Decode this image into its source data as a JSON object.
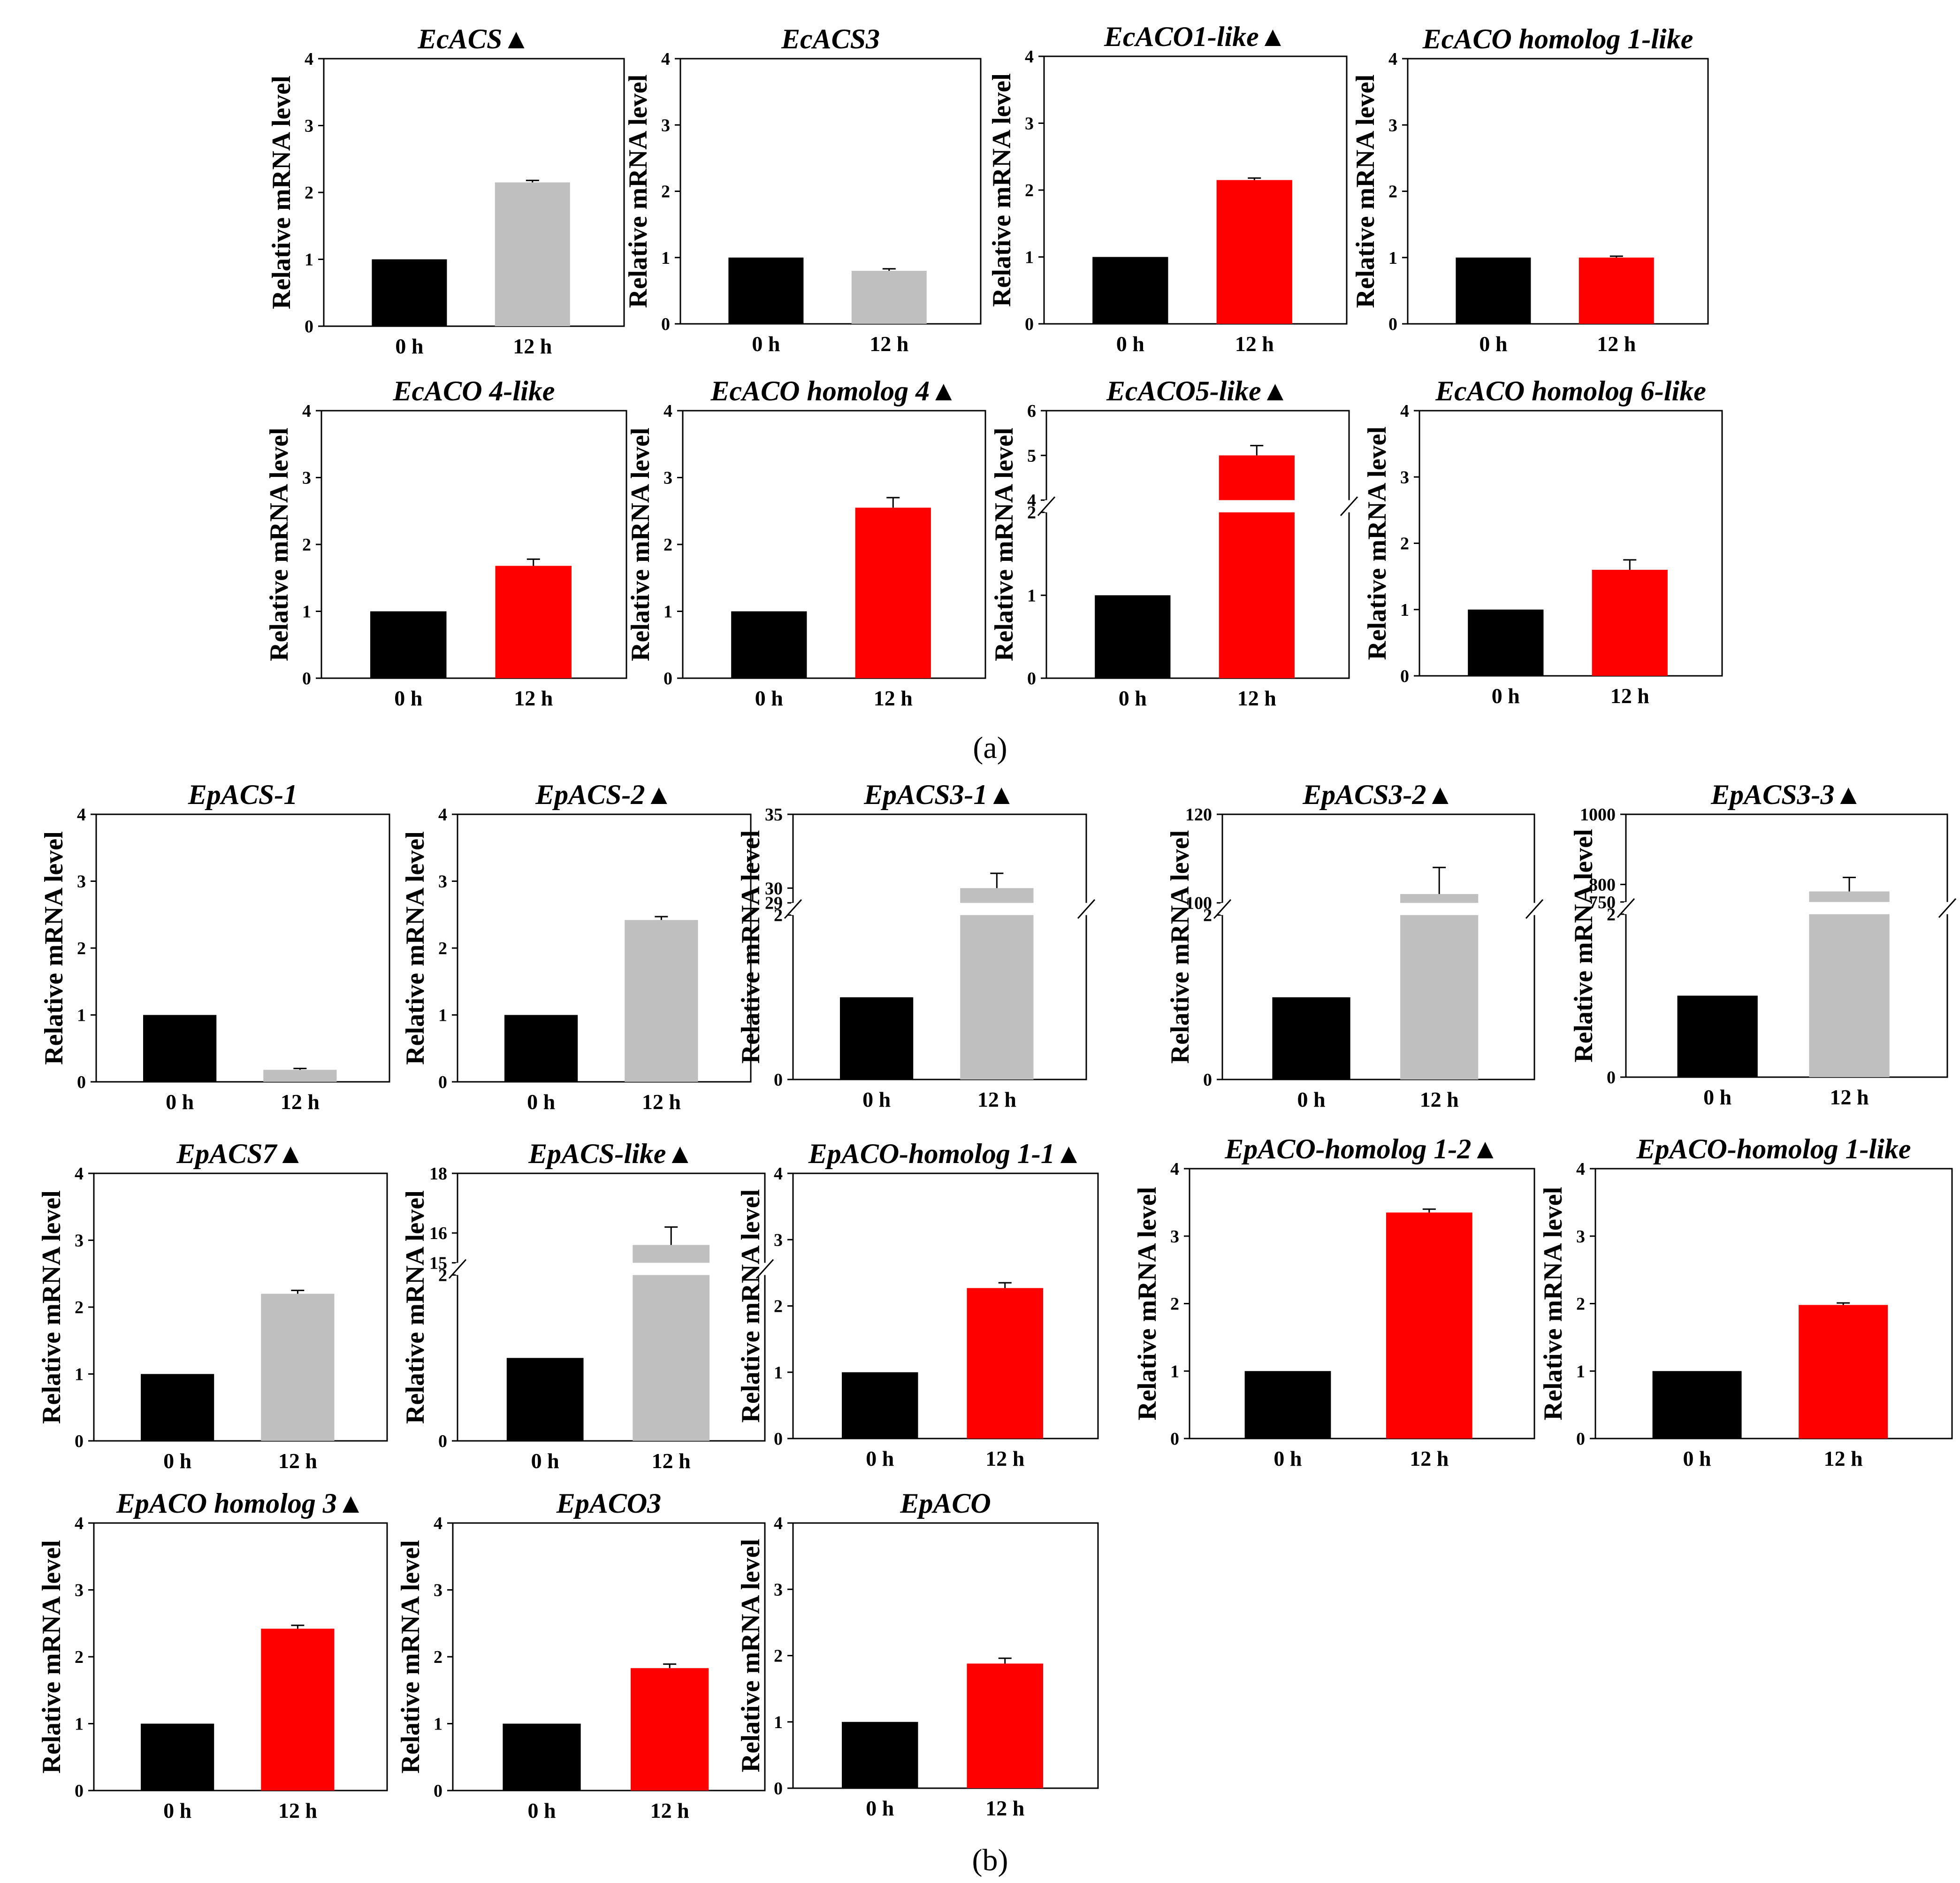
{
  "panel_labels": [
    "(a)",
    "(b)"
  ],
  "colors": {
    "control": "#000000",
    "gray": "#bfbfbf",
    "red": "#ff0000",
    "axis": "#000000"
  },
  "chart_data": [
    {
      "type": "bar",
      "panel": "(a)",
      "title": "EcACS",
      "marker": "▲",
      "ylabel": "Relative mRNA level",
      "categories": [
        "0 h",
        "12 h"
      ],
      "values": [
        1,
        2.15
      ],
      "errors": [
        0,
        0.03
      ],
      "colors": [
        "#000000",
        "#bfbfbf"
      ],
      "ylim": [
        0,
        4
      ],
      "yticks": [
        "0",
        "1",
        "2",
        "3",
        "4"
      ]
    },
    {
      "type": "bar",
      "panel": "(a)",
      "title": "EcACS3",
      "marker": "",
      "ylabel": "Relative mRNA level",
      "categories": [
        "0 h",
        "12 h"
      ],
      "values": [
        1,
        0.8
      ],
      "errors": [
        0,
        0.03
      ],
      "colors": [
        "#000000",
        "#bfbfbf"
      ],
      "ylim": [
        0,
        4
      ],
      "yticks": [
        "0",
        "1",
        "2",
        "3",
        "4"
      ]
    },
    {
      "type": "bar",
      "panel": "(a)",
      "title": "EcACO1-like",
      "marker": "▲",
      "ylabel": "Relative mRNA level",
      "categories": [
        "0 h",
        "12 h"
      ],
      "values": [
        1,
        2.15
      ],
      "errors": [
        0,
        0.03
      ],
      "colors": [
        "#000000",
        "#ff0000"
      ],
      "ylim": [
        0,
        4
      ],
      "yticks": [
        "0",
        "1",
        "2",
        "3",
        "4"
      ]
    },
    {
      "type": "bar",
      "panel": "(a)",
      "title": "EcACO homolog 1-like",
      "marker": "",
      "ylabel": "Relative mRNA level",
      "categories": [
        "0 h",
        "12 h"
      ],
      "values": [
        1,
        1.0
      ],
      "errors": [
        0,
        0.02
      ],
      "colors": [
        "#000000",
        "#ff0000"
      ],
      "ylim": [
        0,
        4
      ],
      "yticks": [
        "0",
        "1",
        "2",
        "3",
        "4"
      ]
    },
    {
      "type": "bar",
      "panel": "(a)",
      "title": "EcACO 4-like",
      "marker": "",
      "ylabel": "Relative mRNA level",
      "categories": [
        "0 h",
        "12 h"
      ],
      "values": [
        1,
        1.68
      ],
      "errors": [
        0,
        0.1
      ],
      "colors": [
        "#000000",
        "#ff0000"
      ],
      "ylim": [
        0,
        4
      ],
      "yticks": [
        "0",
        "1",
        "2",
        "3",
        "4"
      ]
    },
    {
      "type": "bar",
      "panel": "(a)",
      "title": "EcACO homolog 4",
      "marker": "▲",
      "ylabel": "Relative mRNA level",
      "categories": [
        "0 h",
        "12 h"
      ],
      "values": [
        1,
        2.55
      ],
      "errors": [
        0,
        0.15
      ],
      "colors": [
        "#000000",
        "#ff0000"
      ],
      "ylim": [
        0,
        4
      ],
      "yticks": [
        "0",
        "1",
        "2",
        "3",
        "4"
      ]
    },
    {
      "type": "bar",
      "panel": "(a)",
      "title": "EcACO5-like",
      "marker": "▲",
      "ylabel": "Relative mRNA level",
      "categories": [
        "0 h",
        "12 h"
      ],
      "values": [
        1,
        5.0
      ],
      "errors": [
        0,
        0.22
      ],
      "colors": [
        "#000000",
        "#ff0000"
      ],
      "ylim": [
        0,
        6
      ],
      "broken": true,
      "break_at": [
        2,
        4
      ],
      "lower_ticks": [
        "0",
        "1",
        "2"
      ],
      "upper_ticks": [
        "4",
        "5",
        "6"
      ],
      "upper_tick_values": [
        4,
        5,
        6
      ]
    },
    {
      "type": "bar",
      "panel": "(a)",
      "title": "EcACO homolog 6-like",
      "marker": "",
      "ylabel": "Relative mRNA level",
      "categories": [
        "0 h",
        "12 h"
      ],
      "values": [
        1,
        1.6
      ],
      "errors": [
        0,
        0.15
      ],
      "colors": [
        "#000000",
        "#ff0000"
      ],
      "ylim": [
        0,
        4
      ],
      "yticks": [
        "0",
        "1",
        "2",
        "3",
        "4"
      ]
    },
    {
      "type": "bar",
      "panel": "(b)",
      "title": "EpACS-1",
      "marker": "",
      "ylabel": "Relative mRNA level",
      "categories": [
        "0 h",
        "12 h"
      ],
      "values": [
        1,
        0.18
      ],
      "errors": [
        0,
        0.02
      ],
      "colors": [
        "#000000",
        "#bfbfbf"
      ],
      "ylim": [
        0,
        4
      ],
      "yticks": [
        "0",
        "1",
        "2",
        "3",
        "4"
      ]
    },
    {
      "type": "bar",
      "panel": "(b)",
      "title": "EpACS-2",
      "marker": "▲",
      "ylabel": "Relative mRNA level",
      "categories": [
        "0 h",
        "12 h"
      ],
      "values": [
        1,
        2.42
      ],
      "errors": [
        0,
        0.05
      ],
      "colors": [
        "#000000",
        "#bfbfbf"
      ],
      "ylim": [
        0,
        4
      ],
      "yticks": [
        "0",
        "1",
        "2",
        "3",
        "4"
      ]
    },
    {
      "type": "bar",
      "panel": "(b)",
      "title": "EpACS3-1",
      "marker": "▲",
      "ylabel": "Relative mRNA level",
      "categories": [
        "0 h",
        "12 h"
      ],
      "values": [
        1,
        30
      ],
      "errors": [
        0,
        1.0
      ],
      "colors": [
        "#000000",
        "#bfbfbf"
      ],
      "ylim": [
        0,
        35
      ],
      "broken": true,
      "break_at": [
        2,
        29
      ],
      "lower_ticks": [
        "0",
        "2"
      ],
      "upper_ticks": [
        "29",
        "30",
        "35"
      ],
      "upper_tick_values": [
        29,
        30,
        35
      ]
    },
    {
      "type": "bar",
      "panel": "(b)",
      "title": "EpACS3-2",
      "marker": "▲",
      "ylabel": "Relative mRNA level",
      "categories": [
        "0 h",
        "12 h"
      ],
      "values": [
        1,
        102
      ],
      "errors": [
        0,
        6
      ],
      "colors": [
        "#000000",
        "#bfbfbf"
      ],
      "ylim": [
        0,
        120
      ],
      "broken": true,
      "break_at": [
        2,
        100
      ],
      "lower_ticks": [
        "0",
        "2"
      ],
      "upper_ticks": [
        "100",
        "120"
      ],
      "upper_tick_values": [
        100,
        120
      ]
    },
    {
      "type": "bar",
      "panel": "(b)",
      "title": "EpACS3-3",
      "marker": "▲",
      "ylabel": "Relative mRNA level",
      "categories": [
        "0 h",
        "12 h"
      ],
      "values": [
        1,
        780
      ],
      "errors": [
        0,
        40
      ],
      "colors": [
        "#000000",
        "#bfbfbf"
      ],
      "ylim": [
        0,
        1000
      ],
      "broken": true,
      "break_at": [
        2,
        750
      ],
      "lower_ticks": [
        "0",
        "2"
      ],
      "upper_ticks": [
        "750",
        "800",
        "1000"
      ],
      "upper_tick_values": [
        750,
        800,
        1000
      ]
    },
    {
      "type": "bar",
      "panel": "(b)",
      "title": "EpACS7",
      "marker": "▲",
      "ylabel": "Relative mRNA level",
      "categories": [
        "0 h",
        "12 h"
      ],
      "values": [
        1,
        2.2
      ],
      "errors": [
        0,
        0.05
      ],
      "colors": [
        "#000000",
        "#bfbfbf"
      ],
      "ylim": [
        0,
        4
      ],
      "yticks": [
        "0",
        "1",
        "2",
        "3",
        "4"
      ]
    },
    {
      "type": "bar",
      "panel": "(b)",
      "title": "EpACS-like",
      "marker": "▲",
      "ylabel": "Relative mRNA level",
      "categories": [
        "0 h",
        "12 h"
      ],
      "values": [
        1,
        15.6
      ],
      "errors": [
        0,
        0.6
      ],
      "colors": [
        "#000000",
        "#bfbfbf"
      ],
      "ylim": [
        0,
        18
      ],
      "broken": true,
      "break_at": [
        2,
        15
      ],
      "lower_ticks": [
        "0",
        "2"
      ],
      "upper_ticks": [
        "15",
        "16",
        "18"
      ],
      "upper_tick_values": [
        15,
        16,
        18
      ]
    },
    {
      "type": "bar",
      "panel": "(b)",
      "title": "EpACO-homolog 1-1",
      "marker": "▲",
      "ylabel": "Relative mRNA level",
      "categories": [
        "0 h",
        "12 h"
      ],
      "values": [
        1,
        2.27
      ],
      "errors": [
        0,
        0.08
      ],
      "colors": [
        "#000000",
        "#ff0000"
      ],
      "ylim": [
        0,
        4
      ],
      "yticks": [
        "0",
        "1",
        "2",
        "3",
        "4"
      ]
    },
    {
      "type": "bar",
      "panel": "(b)",
      "title": "EpACO-homolog 1-2",
      "marker": "▲",
      "ylabel": "Relative mRNA level",
      "categories": [
        "0 h",
        "12 h"
      ],
      "values": [
        1,
        3.35
      ],
      "errors": [
        0,
        0.05
      ],
      "colors": [
        "#000000",
        "#ff0000"
      ],
      "ylim": [
        0,
        4
      ],
      "yticks": [
        "0",
        "1",
        "2",
        "3",
        "4"
      ]
    },
    {
      "type": "bar",
      "panel": "(b)",
      "title": "EpACO-homolog 1-like",
      "marker": "",
      "ylabel": "Relative mRNA level",
      "categories": [
        "0 h",
        "12 h"
      ],
      "values": [
        1,
        1.98
      ],
      "errors": [
        0,
        0.03
      ],
      "colors": [
        "#000000",
        "#ff0000"
      ],
      "ylim": [
        0,
        4
      ],
      "yticks": [
        "0",
        "1",
        "2",
        "3",
        "4"
      ]
    },
    {
      "type": "bar",
      "panel": "(b)",
      "title": "EpACO homolog 3",
      "marker": "▲",
      "ylabel": "Relative mRNA level",
      "categories": [
        "0 h",
        "12 h"
      ],
      "values": [
        1,
        2.42
      ],
      "errors": [
        0,
        0.05
      ],
      "colors": [
        "#000000",
        "#ff0000"
      ],
      "ylim": [
        0,
        4
      ],
      "yticks": [
        "0",
        "1",
        "2",
        "3",
        "4"
      ]
    },
    {
      "type": "bar",
      "panel": "(b)",
      "title": "EpACO3",
      "marker": "",
      "ylabel": "Relative mRNA level",
      "categories": [
        "0 h",
        "12 h"
      ],
      "values": [
        1,
        1.83
      ],
      "errors": [
        0,
        0.06
      ],
      "colors": [
        "#000000",
        "#ff0000"
      ],
      "ylim": [
        0,
        4
      ],
      "yticks": [
        "0",
        "1",
        "2",
        "3",
        "4"
      ]
    },
    {
      "type": "bar",
      "panel": "(b)",
      "title": "EpACO",
      "marker": "",
      "ylabel": "Relative mRNA level",
      "categories": [
        "0 h",
        "12 h"
      ],
      "values": [
        1,
        1.88
      ],
      "errors": [
        0,
        0.08
      ],
      "colors": [
        "#000000",
        "#ff0000"
      ],
      "ylim": [
        0,
        4
      ],
      "yticks": [
        "0",
        "1",
        "2",
        "3",
        "4"
      ]
    }
  ]
}
